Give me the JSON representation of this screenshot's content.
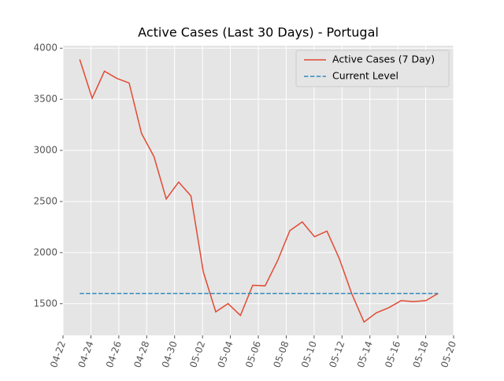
{
  "chart_data": {
    "type": "line",
    "title": "Active Cases (Last 30 Days) - Portugal",
    "x": [
      1.2,
      2.09,
      2.97,
      3.86,
      4.74,
      5.63,
      6.52,
      7.4,
      8.29,
      9.17,
      10.06,
      10.95,
      11.83,
      12.72,
      13.6,
      14.49,
      15.38,
      16.26,
      17.15,
      18.03,
      18.92,
      19.81,
      20.69,
      21.58,
      22.46,
      23.35,
      24.24,
      25.12,
      26.01,
      26.89
    ],
    "series": [
      {
        "name": "Active Cases (7 Day)",
        "color": "#E24A33",
        "dash": false,
        "values": [
          3890,
          3510,
          3775,
          3705,
          3660,
          3165,
          2940,
          2525,
          2690,
          2555,
          1810,
          1420,
          1500,
          1385,
          1680,
          1675,
          1920,
          2215,
          2300,
          2155,
          2210,
          1940,
          1600,
          1320,
          1410,
          1460,
          1530,
          1520,
          1530,
          1600
        ]
      },
      {
        "name": "Current Level",
        "color": "#348ABD",
        "dash": true,
        "values": [
          1600,
          1600,
          1600,
          1600,
          1600,
          1600,
          1600,
          1600,
          1600,
          1600,
          1600,
          1600,
          1600,
          1600,
          1600,
          1600,
          1600,
          1600,
          1600,
          1600,
          1600,
          1600,
          1600,
          1600,
          1600,
          1600,
          1600,
          1600,
          1600,
          1600
        ]
      }
    ],
    "xlim": [
      0,
      28
    ],
    "xticks": [
      {
        "value": 0,
        "label": "04-22"
      },
      {
        "value": 2,
        "label": "04-24"
      },
      {
        "value": 4,
        "label": "04-26"
      },
      {
        "value": 6,
        "label": "04-28"
      },
      {
        "value": 8,
        "label": "04-30"
      },
      {
        "value": 10,
        "label": "05-02"
      },
      {
        "value": 12,
        "label": "05-04"
      },
      {
        "value": 14,
        "label": "05-06"
      },
      {
        "value": 16,
        "label": "05-08"
      },
      {
        "value": 18,
        "label": "05-10"
      },
      {
        "value": 20,
        "label": "05-12"
      },
      {
        "value": 22,
        "label": "05-14"
      },
      {
        "value": 24,
        "label": "05-16"
      },
      {
        "value": 26,
        "label": "05-18"
      },
      {
        "value": 28,
        "label": "05-20"
      }
    ],
    "ylim": [
      1190,
      4025
    ],
    "yticks": [
      1500,
      2000,
      2500,
      3000,
      3500,
      4000
    ],
    "grid": true,
    "legend": "upper right"
  }
}
